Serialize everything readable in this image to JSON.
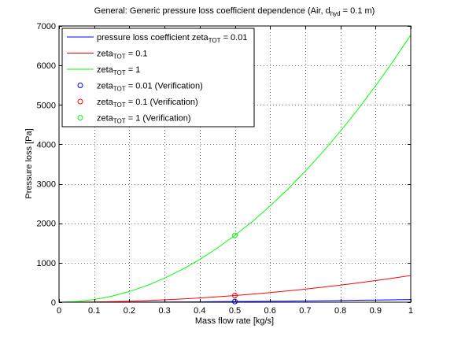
{
  "chart_data": {
    "type": "line",
    "title": {
      "pre": "General: Generic pressure loss coefficient dependence (Air, d",
      "sub": "hyd",
      "post": " = 0.1 m)"
    },
    "xlabel": "Mass flow rate [kg/s]",
    "ylabel": "Pressure loss [Pa]",
    "xlim": [
      0,
      1
    ],
    "ylim": [
      0,
      7000
    ],
    "xticks": [
      0,
      0.1,
      0.2,
      0.3,
      0.4,
      0.5,
      0.6,
      0.7,
      0.8,
      0.9,
      1
    ],
    "xtick_labels": [
      "0",
      "0.1",
      "0.2",
      "0.3",
      "0.4",
      "0.5",
      "0.6",
      "0.7",
      "0.8",
      "0.9",
      "1"
    ],
    "yticks": [
      0,
      1000,
      2000,
      3000,
      4000,
      5000,
      6000,
      7000
    ],
    "ytick_labels": [
      "0",
      "1000",
      "2000",
      "3000",
      "4000",
      "5000",
      "6000",
      "7000"
    ],
    "grid": true,
    "grid_style": "dotted",
    "legend_position": "top-left",
    "x": [
      0,
      0.05,
      0.1,
      0.15,
      0.2,
      0.25,
      0.3,
      0.35,
      0.4,
      0.45,
      0.5,
      0.55,
      0.6,
      0.65,
      0.7,
      0.75,
      0.8,
      0.85,
      0.9,
      0.95,
      1.0
    ],
    "series": [
      {
        "kind": "line",
        "color": "#0000ff",
        "legend": {
          "pre": "pressure loss coefficient zeta",
          "sub": "TOT",
          "post": " = 0.01"
        },
        "values": [
          0,
          0.17,
          0.68,
          1.52,
          2.71,
          4.23,
          6.09,
          8.29,
          10.83,
          13.71,
          16.92,
          20.48,
          24.37,
          28.6,
          33.17,
          38.08,
          43.32,
          48.9,
          54.83,
          61.09,
          67.69
        ]
      },
      {
        "kind": "line",
        "color": "#ff0000",
        "legend": {
          "pre": "zeta",
          "sub": "TOT",
          "post": " = 0.1"
        },
        "values": [
          0,
          1.69,
          6.77,
          15.23,
          27.08,
          42.31,
          60.92,
          82.92,
          108.3,
          137.07,
          169.23,
          204.77,
          243.69,
          286,
          331.69,
          380.77,
          433.23,
          489.07,
          548.3,
          610.92,
          676.9
        ]
      },
      {
        "kind": "line",
        "color": "#00ff00",
        "legend": {
          "pre": "zeta",
          "sub": "TOT",
          "post": " = 1"
        },
        "values": [
          0,
          16.92,
          67.69,
          152.3,
          270.76,
          423.06,
          609.21,
          829.2,
          1083.04,
          1370.72,
          1692.25,
          2047.62,
          2436.84,
          2859.91,
          3316.81,
          3807.56,
          4332.16,
          4890.6,
          5482.89,
          6109.02,
          6769
        ]
      },
      {
        "kind": "marker",
        "color": "#0000ff",
        "legend": {
          "pre": "zeta",
          "sub": "TOT",
          "post": " = 0.01 (Verification)"
        },
        "points": [
          [
            0.5,
            17
          ]
        ]
      },
      {
        "kind": "marker",
        "color": "#ff0000",
        "legend": {
          "pre": "zeta",
          "sub": "TOT",
          "post": " = 0.1 (Verification)"
        },
        "points": [
          [
            0.5,
            170
          ]
        ]
      },
      {
        "kind": "marker",
        "color": "#00ff00",
        "legend": {
          "pre": "zeta",
          "sub": "TOT",
          "post": " = 1 (Verification)"
        },
        "points": [
          [
            0.5,
            1692
          ]
        ]
      }
    ]
  }
}
